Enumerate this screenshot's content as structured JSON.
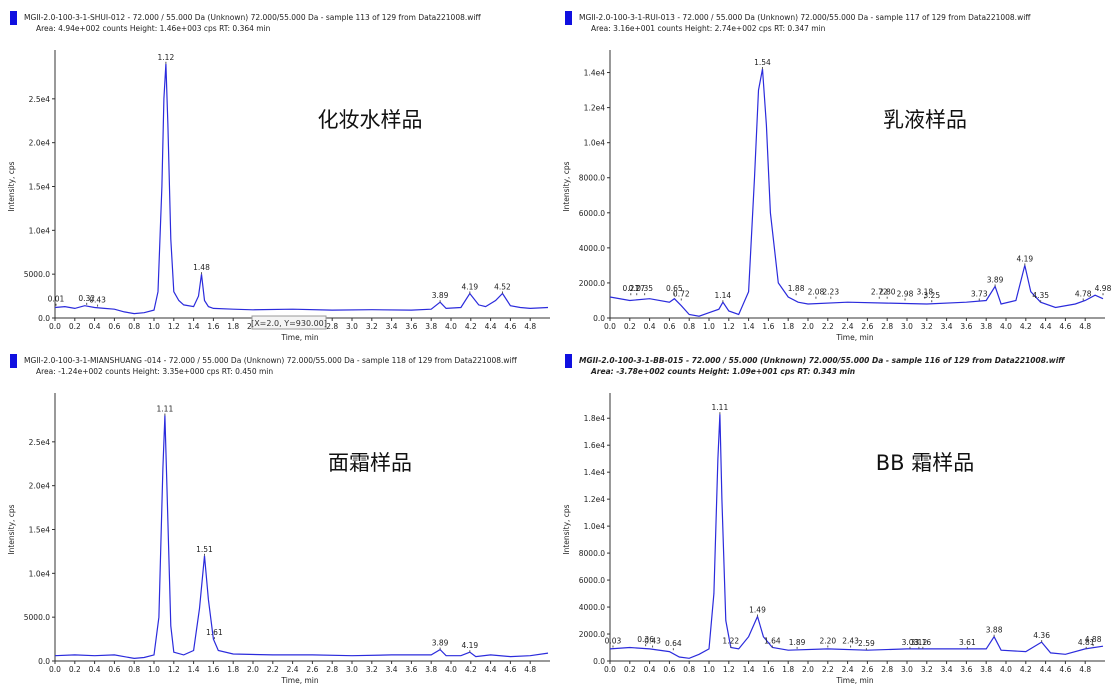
{
  "chart_data": [
    {
      "type": "line",
      "header": "MGII-2.0-100-3-1-SHUI-012 - 72.000 / 55.000 Da (Unknown) 72.000/55.000 Da - sample 113 of 129 from Data221008.wiff",
      "subheader": "Area: 4.94e+002 counts  Height: 1.46e+003 cps  RT: 0.364 min",
      "sample_label": "化妆水样品",
      "xlabel": "Time, min",
      "ylabel": "Intensity, cps",
      "color": "#2b2bdc",
      "xlim": [
        0,
        5
      ],
      "ylim": [
        0,
        30000
      ],
      "xticks": [
        {
          "value": 0,
          "label": "0.0"
        },
        0.2,
        0.4,
        0.6,
        0.8,
        {
          "value": 1,
          "label": "1.0"
        },
        1.2,
        1.4,
        1.6,
        1.8,
        {
          "value": 2,
          "label": "2.0"
        },
        2.2,
        2.4,
        2.6,
        2.8,
        {
          "value": 3,
          "label": "3.0"
        },
        3.2,
        3.4,
        3.6,
        3.8,
        {
          "value": 4,
          "label": "4.0"
        },
        4.2,
        4.4,
        4.6,
        4.8
      ],
      "yticks": [
        {
          "value": 0,
          "label": "0.0"
        },
        {
          "value": 5000,
          "label": "5000.0"
        },
        {
          "value": 10000,
          "label": "1.0e4"
        },
        {
          "value": 15000,
          "label": "1.5e4"
        },
        {
          "value": 20000,
          "label": "2.0e4"
        },
        {
          "value": 25000,
          "label": "2.5e4"
        }
      ],
      "x": [
        0,
        0.1,
        0.2,
        0.3,
        0.4,
        0.5,
        0.6,
        0.7,
        0.8,
        0.9,
        1.0,
        1.04,
        1.08,
        1.1,
        1.12,
        1.14,
        1.17,
        1.2,
        1.25,
        1.3,
        1.4,
        1.45,
        1.48,
        1.51,
        1.55,
        1.6,
        1.8,
        2.0,
        2.4,
        2.8,
        3.2,
        3.6,
        3.8,
        3.89,
        3.95,
        4.1,
        4.19,
        4.28,
        4.35,
        4.45,
        4.52,
        4.6,
        4.7,
        4.8,
        4.98
      ],
      "values": [
        1200,
        1300,
        1100,
        1400,
        1200,
        1100,
        1000,
        700,
        500,
        600,
        900,
        3000,
        15000,
        25000,
        29000,
        22000,
        9000,
        3000,
        2000,
        1500,
        1300,
        2500,
        5000,
        2000,
        1300,
        1100,
        1000,
        930,
        1000,
        900,
        950,
        900,
        1000,
        1800,
        1100,
        1200,
        2800,
        1500,
        1300,
        2000,
        2800,
        1400,
        1200,
        1100,
        1200
      ],
      "peaks": [
        {
          "x": 0.01,
          "y": 1400,
          "label": "0.01"
        },
        {
          "x": 0.32,
          "y": 1500,
          "label": "0.32"
        },
        {
          "x": 0.43,
          "y": 1300,
          "label": "0.43"
        },
        {
          "x": 1.12,
          "y": 29000,
          "label": "1.12"
        },
        {
          "x": 1.48,
          "y": 5000,
          "label": "1.48"
        },
        {
          "x": 3.89,
          "y": 1800,
          "label": "3.89"
        },
        {
          "x": 4.19,
          "y": 2800,
          "label": "4.19"
        },
        {
          "x": 4.52,
          "y": 2800,
          "label": "4.52"
        }
      ],
      "tooltip": "[X=2.0, Y=930.00]"
    },
    {
      "type": "line",
      "header": "MGII-2.0-100-3-1-RUI-013 - 72.000 / 55.000 Da (Unknown) 72.000/55.000 Da - sample 117 of 129 from Data221008.wiff",
      "subheader": "Area: 3.16e+001 counts  Height: 2.74e+002 cps  RT: 0.347 min",
      "sample_label": "乳液样品",
      "xlabel": "Time, min",
      "ylabel": "Intensity, cps",
      "color": "#2b2bdc",
      "xlim": [
        0,
        5
      ],
      "ylim": [
        0,
        15000
      ],
      "xticks": [
        {
          "value": 0,
          "label": "0.0"
        },
        0.2,
        0.4,
        0.6,
        0.8,
        {
          "value": 1,
          "label": "1.0"
        },
        1.2,
        1.4,
        1.6,
        1.8,
        {
          "value": 2,
          "label": "2.0"
        },
        2.2,
        2.4,
        2.6,
        2.8,
        {
          "value": 3,
          "label": "3.0"
        },
        3.2,
        3.4,
        3.6,
        3.8,
        {
          "value": 4,
          "label": "4.0"
        },
        4.2,
        4.4,
        4.6,
        4.8
      ],
      "yticks": [
        {
          "value": 0,
          "label": "0.0"
        },
        {
          "value": 2000,
          "label": "2000.0"
        },
        {
          "value": 4000,
          "label": "4000.0"
        },
        {
          "value": 6000,
          "label": "6000.0"
        },
        {
          "value": 8000,
          "label": "8000.0"
        },
        {
          "value": 10000,
          "label": "1.0e4"
        },
        {
          "value": 12000,
          "label": "1.2e4"
        },
        {
          "value": 14000,
          "label": "1.4e4"
        }
      ],
      "x": [
        0,
        0.2,
        0.4,
        0.6,
        0.65,
        0.72,
        0.8,
        0.9,
        1.0,
        1.1,
        1.14,
        1.2,
        1.3,
        1.4,
        1.46,
        1.5,
        1.54,
        1.58,
        1.62,
        1.7,
        1.8,
        1.9,
        2.0,
        2.4,
        2.8,
        3.2,
        3.6,
        3.8,
        3.89,
        3.95,
        4.1,
        4.19,
        4.25,
        4.35,
        4.5,
        4.7,
        4.8,
        4.9,
        4.98
      ],
      "values": [
        1200,
        1000,
        1100,
        900,
        1100,
        700,
        200,
        100,
        300,
        500,
        900,
        400,
        200,
        1500,
        8000,
        13000,
        14200,
        11000,
        6000,
        2000,
        1200,
        900,
        800,
        900,
        850,
        800,
        900,
        1000,
        1800,
        800,
        1000,
        3000,
        1500,
        900,
        600,
        800,
        1000,
        1300,
        1100
      ],
      "peaks": [
        {
          "x": 0.21,
          "y": 1300,
          "label": "0.21"
        },
        {
          "x": 0.27,
          "y": 1300,
          "label": "0.27"
        },
        {
          "x": 0.35,
          "y": 1300,
          "label": "0.35"
        },
        {
          "x": 0.65,
          "y": 1300,
          "label": "0.65"
        },
        {
          "x": 0.72,
          "y": 1000,
          "label": "0.72"
        },
        {
          "x": 1.14,
          "y": 900,
          "label": "1.14"
        },
        {
          "x": 1.54,
          "y": 14200,
          "label": "1.54"
        },
        {
          "x": 1.88,
          "y": 1300,
          "label": "1.88"
        },
        {
          "x": 2.08,
          "y": 1100,
          "label": "2.08"
        },
        {
          "x": 2.23,
          "y": 1100,
          "label": "2.23"
        },
        {
          "x": 2.72,
          "y": 1100,
          "label": "2.72"
        },
        {
          "x": 2.8,
          "y": 1100,
          "label": "2.80"
        },
        {
          "x": 2.98,
          "y": 1000,
          "label": "2.98"
        },
        {
          "x": 3.18,
          "y": 1100,
          "label": "3.18"
        },
        {
          "x": 3.25,
          "y": 900,
          "label": "3.25"
        },
        {
          "x": 3.73,
          "y": 1000,
          "label": "3.73"
        },
        {
          "x": 3.89,
          "y": 1800,
          "label": "3.89"
        },
        {
          "x": 4.19,
          "y": 3000,
          "label": "4.19"
        },
        {
          "x": 4.35,
          "y": 900,
          "label": "4.35"
        },
        {
          "x": 4.78,
          "y": 1000,
          "label": "4.78"
        },
        {
          "x": 4.98,
          "y": 1300,
          "label": "4.98"
        }
      ]
    },
    {
      "type": "line",
      "header": "MGII-2.0-100-3-1-MIANSHUANG -014 - 72.000 / 55.000 Da (Unknown) 72.000/55.000 Da - sample 118 of 129 from Data221008.wiff",
      "subheader": "Area: -1.24e+002 counts  Height: 3.35e+000 cps  RT: 0.450 min",
      "sample_label": "面霜样品",
      "xlabel": "Time, min",
      "ylabel": "Intensity, cps",
      "color": "#2b2bdc",
      "xlim": [
        0,
        5
      ],
      "ylim": [
        0,
        30000
      ],
      "xticks": [
        {
          "value": 0,
          "label": "0.0"
        },
        0.2,
        0.4,
        0.6,
        0.8,
        {
          "value": 1,
          "label": "1.0"
        },
        1.2,
        1.4,
        1.6,
        1.8,
        {
          "value": 2,
          "label": "2.0"
        },
        2.2,
        2.4,
        2.6,
        2.8,
        {
          "value": 3,
          "label": "3.0"
        },
        3.2,
        3.4,
        3.6,
        3.8,
        {
          "value": 4,
          "label": "4.0"
        },
        4.2,
        4.4,
        4.6,
        4.8
      ],
      "yticks": [
        {
          "value": 0,
          "label": "0.0"
        },
        {
          "value": 5000,
          "label": "5000.0"
        },
        {
          "value": 10000,
          "label": "1.0e4"
        },
        {
          "value": 15000,
          "label": "1.5e4"
        },
        {
          "value": 20000,
          "label": "2.0e4"
        },
        {
          "value": 25000,
          "label": "2.5e4"
        }
      ],
      "x": [
        0,
        0.2,
        0.4,
        0.6,
        0.8,
        0.9,
        1.0,
        1.05,
        1.09,
        1.11,
        1.13,
        1.17,
        1.2,
        1.3,
        1.4,
        1.46,
        1.51,
        1.55,
        1.6,
        1.65,
        1.8,
        2.2,
        2.6,
        3.0,
        3.4,
        3.8,
        3.89,
        3.95,
        4.1,
        4.19,
        4.25,
        4.4,
        4.6,
        4.8,
        4.98
      ],
      "values": [
        600,
        700,
        600,
        700,
        300,
        400,
        700,
        5000,
        22000,
        28000,
        20000,
        4000,
        1000,
        700,
        1200,
        6000,
        12000,
        7000,
        2500,
        1200,
        800,
        700,
        700,
        600,
        700,
        700,
        1300,
        600,
        600,
        1000,
        500,
        700,
        500,
        600,
        900
      ],
      "peaks": [
        {
          "x": 1.11,
          "y": 28000,
          "label": "1.11"
        },
        {
          "x": 1.51,
          "y": 12000,
          "label": "1.51"
        },
        {
          "x": 1.61,
          "y": 2500,
          "label": "1.61"
        },
        {
          "x": 3.89,
          "y": 1300,
          "label": "3.89"
        },
        {
          "x": 4.19,
          "y": 1000,
          "label": "4.19"
        }
      ]
    },
    {
      "type": "line",
      "header": "MGII-2.0-100-3-1-BB-015 - 72.000 / 55.000 (Unknown) 72.000/55.000 Da - sample 116 of 129 from Data221008.wiff",
      "subheader": "Area: -3.78e+002 counts  Height: 1.09e+001 cps  RT: 0.343 min",
      "sample_label": "BB 霜样品",
      "xlabel": "Time, min",
      "ylabel": "Intensity, cps",
      "color": "#2b2bdc",
      "xlim": [
        0,
        5
      ],
      "ylim": [
        0,
        19500
      ],
      "xticks": [
        {
          "value": 0,
          "label": "0.0"
        },
        0.2,
        0.4,
        0.6,
        0.8,
        {
          "value": 1,
          "label": "1.0"
        },
        1.2,
        1.4,
        1.6,
        1.8,
        {
          "value": 2,
          "label": "2.0"
        },
        2.2,
        2.4,
        2.6,
        2.8,
        {
          "value": 3,
          "label": "3.0"
        },
        3.2,
        3.4,
        3.6,
        3.8,
        {
          "value": 4,
          "label": "4.0"
        },
        4.2,
        4.4,
        4.6,
        4.8
      ],
      "yticks": [
        {
          "value": 0,
          "label": "0.0"
        },
        {
          "value": 2000,
          "label": "2000.0"
        },
        {
          "value": 4000,
          "label": "4000.0"
        },
        {
          "value": 6000,
          "label": "6000.0"
        },
        {
          "value": 8000,
          "label": "8000.0"
        },
        {
          "value": 10000,
          "label": "1.0e4"
        },
        {
          "value": 12000,
          "label": "1.2e4"
        },
        {
          "value": 14000,
          "label": "1.4e4"
        },
        {
          "value": 16000,
          "label": "1.6e4"
        },
        {
          "value": 18000,
          "label": "1.8e4"
        }
      ],
      "x": [
        0,
        0.2,
        0.4,
        0.6,
        0.7,
        0.8,
        0.9,
        1.0,
        1.05,
        1.09,
        1.11,
        1.13,
        1.17,
        1.22,
        1.3,
        1.4,
        1.49,
        1.55,
        1.64,
        1.8,
        2.2,
        2.6,
        3.0,
        3.4,
        3.8,
        3.88,
        3.95,
        4.2,
        4.36,
        4.45,
        4.6,
        4.8,
        4.98
      ],
      "values": [
        900,
        1000,
        900,
        700,
        300,
        200,
        500,
        900,
        5000,
        15000,
        18300,
        12000,
        3000,
        1000,
        900,
        1800,
        3300,
        1800,
        1000,
        800,
        900,
        800,
        900,
        900,
        900,
        1800,
        800,
        700,
        1400,
        600,
        500,
        900,
        1100
      ],
      "peaks": [
        {
          "x": 0.03,
          "y": 1000,
          "label": "0.03"
        },
        {
          "x": 0.36,
          "y": 1100,
          "label": "0.36"
        },
        {
          "x": 0.43,
          "y": 1000,
          "label": "0.43"
        },
        {
          "x": 0.64,
          "y": 800,
          "label": "0.64"
        },
        {
          "x": 1.11,
          "y": 18300,
          "label": "1.11"
        },
        {
          "x": 1.22,
          "y": 1000,
          "label": "1.22"
        },
        {
          "x": 1.49,
          "y": 3300,
          "label": "1.49"
        },
        {
          "x": 1.64,
          "y": 1000,
          "label": "1.64"
        },
        {
          "x": 1.89,
          "y": 900,
          "label": "1.89"
        },
        {
          "x": 2.2,
          "y": 1000,
          "label": "2.20"
        },
        {
          "x": 2.43,
          "y": 1000,
          "label": "2.43"
        },
        {
          "x": 2.59,
          "y": 800,
          "label": "2.59"
        },
        {
          "x": 3.03,
          "y": 900,
          "label": "3.03"
        },
        {
          "x": 3.12,
          "y": 900,
          "label": "3.12"
        },
        {
          "x": 3.16,
          "y": 900,
          "label": "3.16"
        },
        {
          "x": 3.61,
          "y": 900,
          "label": "3.61"
        },
        {
          "x": 3.88,
          "y": 1800,
          "label": "3.88"
        },
        {
          "x": 4.36,
          "y": 1400,
          "label": "4.36"
        },
        {
          "x": 4.81,
          "y": 900,
          "label": "4.81"
        },
        {
          "x": 4.88,
          "y": 1100,
          "label": "4.88"
        }
      ]
    }
  ]
}
